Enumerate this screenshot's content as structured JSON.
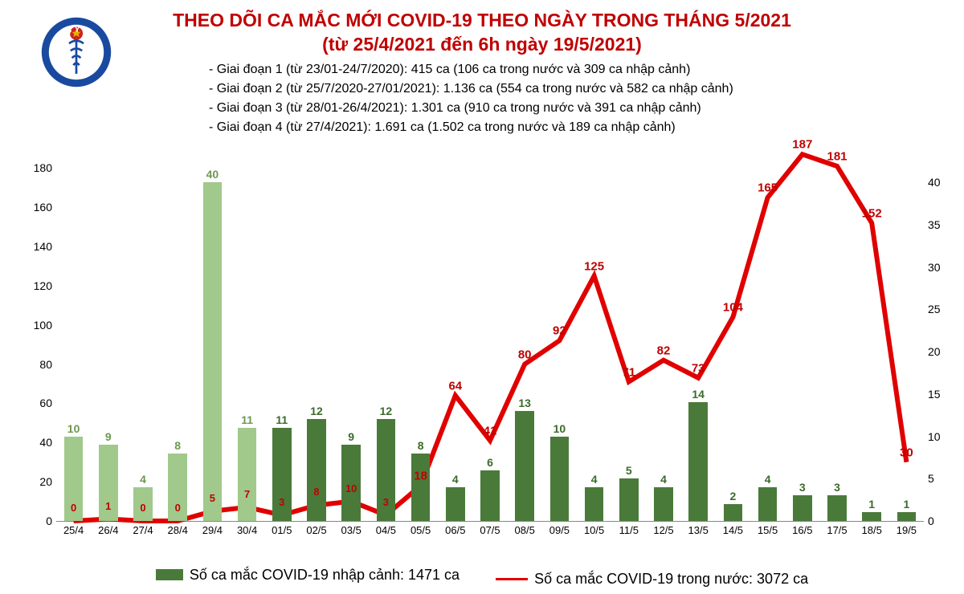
{
  "title_line1": "THEO DÕI CA MẮC MỚI COVID-19 THEO NGÀY TRONG THÁNG 5/2021",
  "title_line2": "(từ 25/4/2021 đến 6h ngày 19/5/2021)",
  "title_color": "#c00000",
  "notes": [
    "- Giai đoạn 1 (từ 23/01-24/7/2020): 415 ca (106 ca trong nước và 309 ca nhập cảnh)",
    "- Giai đoạn 2 (từ 25/7/2020-27/01/2021): 1.136 ca (554 ca trong nước và 582 ca nhập cảnh)",
    "- Giai đoạn 3 (từ 28/01-26/4/2021): 1.301 ca (910 ca trong nước và 391 ca nhập cảnh)",
    "- Giai đoạn 4 (từ 27/4/2021): 1.691 ca (1.502 ca trong nước và 189 ca nhập cảnh)"
  ],
  "chart": {
    "type": "bar+line",
    "categories": [
      "25/4",
      "26/4",
      "27/4",
      "28/4",
      "29/4",
      "30/4",
      "01/5",
      "02/5",
      "03/5",
      "04/5",
      "05/5",
      "06/5",
      "07/5",
      "08/5",
      "09/5",
      "10/5",
      "11/5",
      "12/5",
      "13/5",
      "14/5",
      "15/5",
      "16/5",
      "17/5",
      "18/5",
      "19/5"
    ],
    "bars": {
      "values_right_axis": [
        10,
        9,
        4,
        8,
        40,
        11,
        11,
        12,
        9,
        12,
        8,
        4,
        6,
        13,
        10,
        4,
        5,
        4,
        14,
        2,
        4,
        3,
        3,
        1,
        1
      ],
      "colors": [
        "#a0c98b",
        "#a0c98b",
        "#a0c98b",
        "#a0c98b",
        "#a0c98b",
        "#a0c98b",
        "#4a7a3a",
        "#4a7a3a",
        "#4a7a3a",
        "#4a7a3a",
        "#4a7a3a",
        "#4a7a3a",
        "#4a7a3a",
        "#4a7a3a",
        "#4a7a3a",
        "#4a7a3a",
        "#4a7a3a",
        "#4a7a3a",
        "#4a7a3a",
        "#4a7a3a",
        "#4a7a3a",
        "#4a7a3a",
        "#4a7a3a",
        "#4a7a3a",
        "#4a7a3a"
      ],
      "label_colors": [
        "#6b9952",
        "#6b9952",
        "#6b9952",
        "#6b9952",
        "#6b9952",
        "#6b9952",
        "#3a6b2a",
        "#3a6b2a",
        "#3a6b2a",
        "#3a6b2a",
        "#3a6b2a",
        "#3a6b2a",
        "#3a6b2a",
        "#3a6b2a",
        "#3a6b2a",
        "#3a6b2a",
        "#3a6b2a",
        "#3a6b2a",
        "#3a6b2a",
        "#3a6b2a",
        "#3a6b2a",
        "#3a6b2a",
        "#3a6b2a",
        "#3a6b2a",
        "#3a6b2a"
      ],
      "bar_width_frac": 0.55
    },
    "line": {
      "values_left_axis": [
        0,
        1,
        0,
        0,
        5,
        7,
        3,
        8,
        10,
        3,
        18,
        64,
        41,
        80,
        92,
        125,
        71,
        82,
        73,
        104,
        165,
        187,
        181,
        152,
        30
      ],
      "color": "#e00000",
      "line_width": 3
    },
    "y_left": {
      "min": 0,
      "max": 190,
      "ticks": [
        0,
        20,
        40,
        60,
        80,
        100,
        120,
        140,
        160,
        180
      ]
    },
    "y_right": {
      "min": 0,
      "max": 44,
      "ticks": [
        0,
        5,
        10,
        15,
        20,
        25,
        30,
        35,
        40
      ]
    },
    "background_color": "#ffffff",
    "axis_fontsize": 14
  },
  "legend": {
    "bar_swatch_color": "#4a7a3a",
    "bar_text": "Số ca mắc COVID-19 nhập cảnh: 1471 ca",
    "line_swatch_color": "#e00000",
    "line_text": "Số ca mắc COVID-19 trong nước: 3072 ca"
  },
  "logo": {
    "outer_color": "#1a4aa0",
    "star_color": "#e8b000",
    "star_bg": "#d02020",
    "text": "BỘ Y TẾ"
  }
}
